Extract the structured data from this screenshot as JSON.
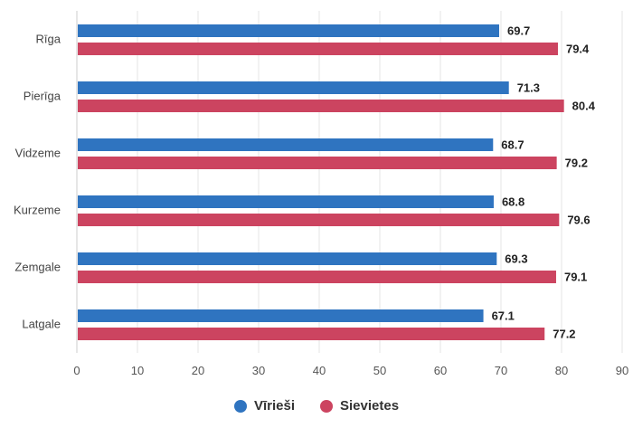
{
  "chart_data": {
    "type": "bar",
    "orientation": "horizontal",
    "categories": [
      "Rīga",
      "Pierīga",
      "Vidzeme",
      "Kurzeme",
      "Zemgale",
      "Latgale"
    ],
    "series": [
      {
        "name": "Vīrieši",
        "color": "#2f74c0",
        "values": [
          69.7,
          71.3,
          68.7,
          68.8,
          69.3,
          67.1
        ]
      },
      {
        "name": "Sievietes",
        "color": "#cc4460",
        "values": [
          79.4,
          80.4,
          79.2,
          79.6,
          79.1,
          77.2
        ]
      }
    ],
    "xlim": [
      0,
      90
    ],
    "xticks": [
      0,
      10,
      20,
      30,
      40,
      50,
      60,
      70,
      80,
      90
    ],
    "grid": true,
    "data_labels": true,
    "legend_position": "bottom-center"
  }
}
